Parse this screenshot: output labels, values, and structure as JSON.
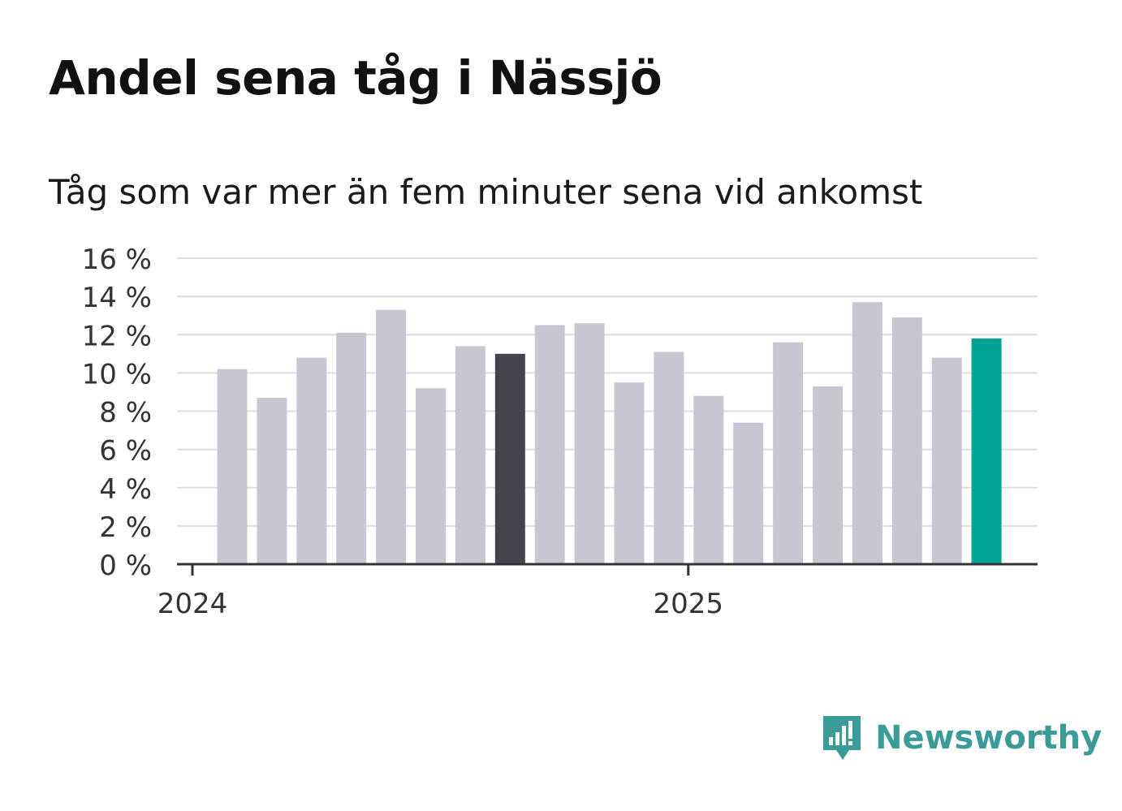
{
  "title": "Andel sena tåg i Nässjö",
  "subtitle": "Tåg som var mer än fem minuter sena vid ankomst",
  "brand": {
    "name": "Newsworthy",
    "icon": "newsworthy-logo-icon",
    "color": "#3a9b98"
  },
  "colors": {
    "bar_default": "#c8c6d3",
    "bar_highlight_dark": "#44434f",
    "bar_highlight_latest": "#00a396",
    "grid": "#dddddd",
    "axis": "#333333",
    "tick_text": "#333333"
  },
  "chart_data": {
    "type": "bar",
    "title": "Andel sena tåg i Nässjö",
    "subtitle": "Tåg som var mer än fem minuter sena vid ankomst",
    "xlabel": "",
    "ylabel": "",
    "ylim": [
      0,
      16
    ],
    "yticks": [
      0,
      2,
      4,
      6,
      8,
      10,
      12,
      14,
      16
    ],
    "ytick_labels": [
      "0 %",
      "2 %",
      "4 %",
      "6 %",
      "8 %",
      "10 %",
      "12 %",
      "14 %",
      "16 %"
    ],
    "grid": true,
    "categories": [
      "2024-01",
      "2024-02",
      "2024-03",
      "2024-04",
      "2024-05",
      "2024-06",
      "2024-07",
      "2024-08",
      "2024-09",
      "2024-10",
      "2024-11",
      "2024-12",
      "2025-01",
      "2025-02",
      "2025-03",
      "2025-04",
      "2025-05",
      "2025-06",
      "2025-07",
      "2025-08"
    ],
    "values": [
      10.2,
      8.7,
      10.8,
      12.1,
      13.3,
      9.2,
      11.4,
      11.0,
      12.5,
      12.6,
      9.5,
      11.1,
      8.8,
      7.4,
      11.6,
      9.3,
      13.7,
      12.9,
      10.8,
      11.8
    ],
    "highlight": {
      "2024-08": "dark",
      "2025-08": "latest"
    },
    "x_tick_labels": [
      {
        "label": "2024",
        "category": "2024-01"
      },
      {
        "label": "2025",
        "category": "2025-01"
      }
    ]
  }
}
